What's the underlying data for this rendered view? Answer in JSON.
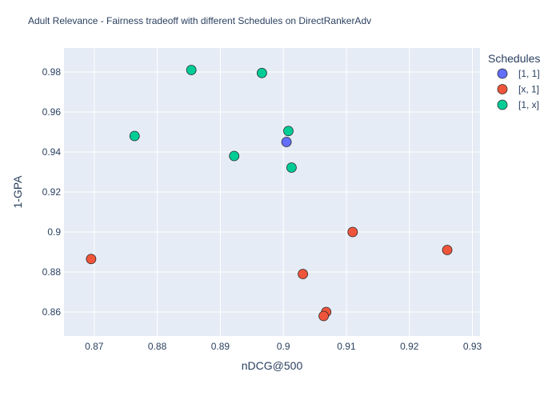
{
  "chart_data": {
    "type": "scatter",
    "title": "Adult Relevance - Fairness tradeoff with different Schedules on DirectRankerAdv",
    "xlabel": "nDCG@500",
    "ylabel": "1-GPA",
    "xlim": [
      0.8652,
      0.9312
    ],
    "ylim": [
      0.848,
      0.992
    ],
    "x_ticks": [
      0.87,
      0.88,
      0.89,
      0.9,
      0.91,
      0.92,
      0.93
    ],
    "x_tick_labels": [
      "0.87",
      "0.88",
      "0.89",
      "0.9",
      "0.91",
      "0.92",
      "0.93"
    ],
    "y_ticks": [
      0.86,
      0.88,
      0.9,
      0.92,
      0.94,
      0.96,
      0.98
    ],
    "y_tick_labels": [
      "0.86",
      "0.88",
      "0.9",
      "0.92",
      "0.94",
      "0.96",
      "0.98"
    ],
    "grid": true,
    "legend_title": "Schedules",
    "legend_position": "top-right-outside",
    "series": [
      {
        "name": "[1, 1]",
        "color": "#636efa",
        "points": [
          [
            0.9005,
            0.945
          ]
        ]
      },
      {
        "name": "[x, 1]",
        "color": "#ef553b",
        "points": [
          [
            0.8695,
            0.8865
          ],
          [
            0.9031,
            0.879
          ],
          [
            0.9068,
            0.86
          ],
          [
            0.9064,
            0.858
          ],
          [
            0.911,
            0.9
          ],
          [
            0.926,
            0.891
          ]
        ]
      },
      {
        "name": "[1, x]",
        "color": "#00cc96",
        "points": [
          [
            0.8764,
            0.948
          ],
          [
            0.8854,
            0.981
          ],
          [
            0.8922,
            0.938
          ],
          [
            0.8966,
            0.9795
          ],
          [
            0.9008,
            0.9505
          ],
          [
            0.9013,
            0.9322
          ]
        ]
      }
    ]
  }
}
